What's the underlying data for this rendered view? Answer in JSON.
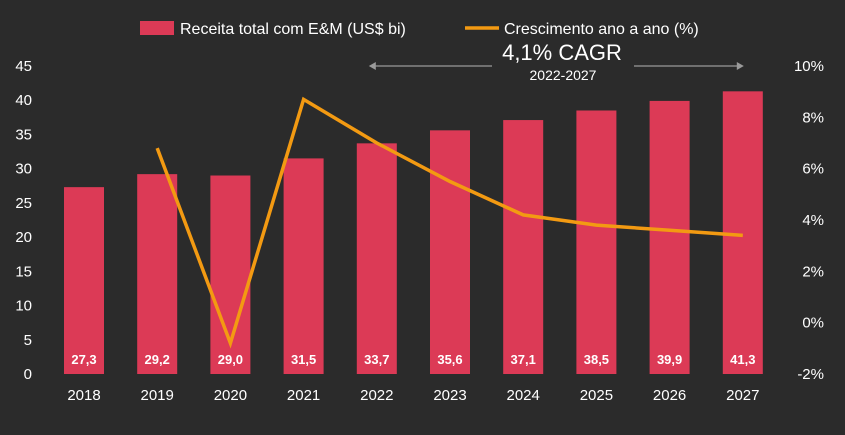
{
  "colors": {
    "background": "#2b2b2b",
    "bar": "#dc3a56",
    "line": "#f39a12",
    "text": "#ffffff",
    "arrow": "#9a9a9a"
  },
  "chart_data": {
    "type": "bar",
    "title": "",
    "categories": [
      "2018",
      "2019",
      "2020",
      "2021",
      "2022",
      "2023",
      "2024",
      "2025",
      "2026",
      "2027"
    ],
    "series": [
      {
        "name": "Receita total com E&M (US$ bi)",
        "type": "bar",
        "axis": "left",
        "values": [
          27.3,
          29.2,
          29.0,
          31.5,
          33.7,
          35.6,
          37.1,
          38.5,
          39.9,
          41.3
        ],
        "labels": [
          "27,3",
          "29,2",
          "29,0",
          "31,5",
          "33,7",
          "35,6",
          "37,1",
          "38,5",
          "39,9",
          "41,3"
        ]
      },
      {
        "name": "Crescimento ano a ano (%)",
        "type": "line",
        "axis": "right",
        "values": [
          null,
          6.8,
          -0.8,
          8.7,
          7.0,
          5.5,
          4.2,
          3.8,
          3.6,
          3.4
        ]
      }
    ],
    "ylim": [
      0,
      45
    ],
    "yticks": [
      0,
      5,
      10,
      15,
      20,
      25,
      30,
      35,
      40,
      45
    ],
    "ytick_labels": [
      "0",
      "5",
      "10",
      "15",
      "20",
      "25",
      "30",
      "35",
      "40",
      "45"
    ],
    "y2lim": [
      -2,
      10
    ],
    "y2ticks": [
      -2,
      0,
      2,
      4,
      6,
      8,
      10
    ],
    "y2tick_labels": [
      "-2%",
      "0%",
      "2%",
      "4%",
      "6%",
      "8%",
      "10%"
    ],
    "legend_position": "top",
    "grid": false,
    "annotation": {
      "text": "4,1% CAGR",
      "subtext": "2022-2027",
      "from_category": "2022",
      "to_category": "2027"
    }
  }
}
